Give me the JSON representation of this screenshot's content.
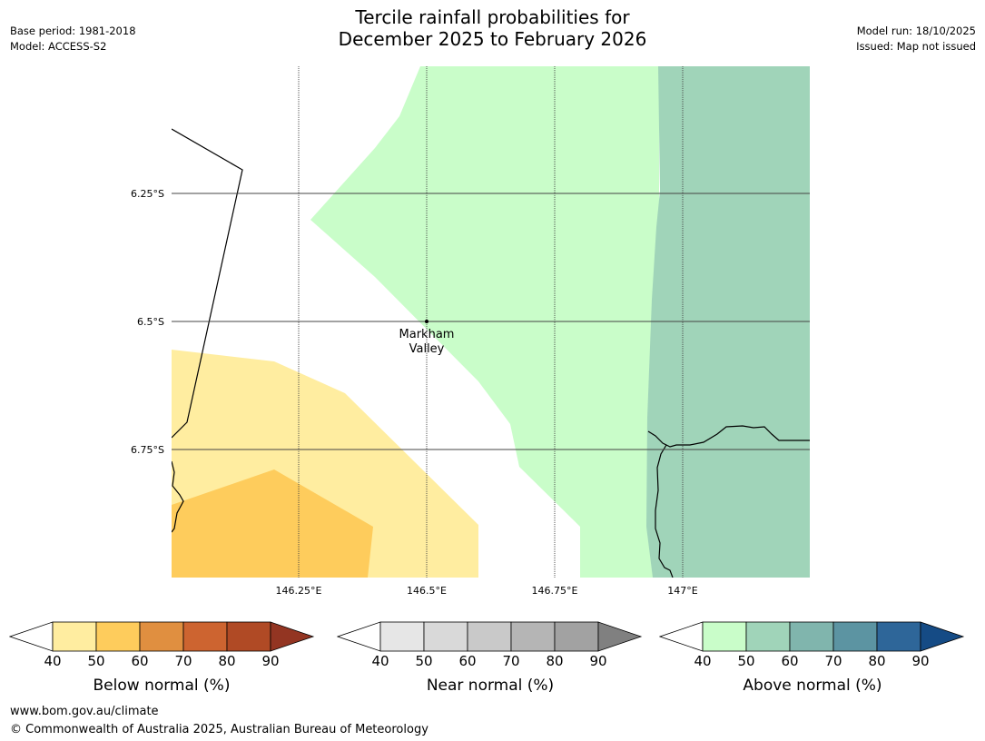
{
  "title": {
    "line1": "Tercile rainfall probabilities for",
    "line2": "December 2025 to February 2026"
  },
  "meta_left": {
    "base_period": "Base period: 1981-2018",
    "model": "Model: ACCESS-S2"
  },
  "meta_right": {
    "model_run": "Model run: 18/10/2025",
    "issued": "Issued: Map not issued"
  },
  "map": {
    "lat_labels": [
      "6.25°S",
      "6.5°S",
      "6.75°S"
    ],
    "lon_labels": [
      "146.25°E",
      "146.5°E",
      "146.75°E",
      "147°E"
    ],
    "place": {
      "line1": "Markham",
      "line2": "Valley"
    }
  },
  "colorbars": [
    {
      "label": "Below normal (%)",
      "ticks": [
        "40",
        "50",
        "60",
        "70",
        "80",
        "90"
      ],
      "under_color": "#ffffff",
      "colors": [
        "#ffeda0",
        "#fecc5c",
        "#e08f40",
        "#cd6430",
        "#b04a25"
      ],
      "over_color": "#933522"
    },
    {
      "label": "Near normal (%)",
      "ticks": [
        "40",
        "50",
        "60",
        "70",
        "80",
        "90"
      ],
      "under_color": "#ffffff",
      "colors": [
        "#e6e6e6",
        "#d9d9d9",
        "#c9c9c9",
        "#b5b5b5",
        "#a2a2a2"
      ],
      "over_color": "#808080"
    },
    {
      "label": "Above normal (%)",
      "ticks": [
        "40",
        "50",
        "60",
        "70",
        "80",
        "90"
      ],
      "under_color": "#ffffff",
      "colors": [
        "#c9fdc9",
        "#a0d4b9",
        "#80b5ad",
        "#5c94a2",
        "#2e6699"
      ],
      "over_color": "#154b85"
    }
  ],
  "footer": {
    "url": "www.bom.gov.au/climate",
    "copyright": "© Commonwealth of Australia 2025, Australian Bureau of Meteorology"
  }
}
